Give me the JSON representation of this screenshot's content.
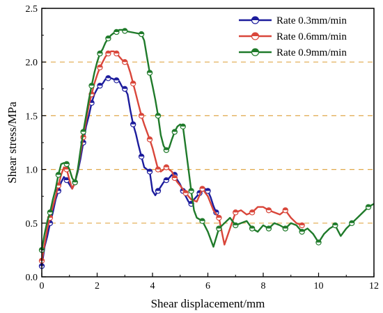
{
  "chart_data": {
    "type": "line",
    "xlabel": "Shear displacement/mm",
    "ylabel": "Shear stress/MPa",
    "xlim": [
      0,
      12
    ],
    "ylim": [
      0,
      2.5
    ],
    "x_ticks": [
      "0",
      "2",
      "4",
      "6",
      "8",
      "10",
      "12"
    ],
    "y_ticks": [
      "0.0",
      "0.5",
      "1.0",
      "1.5",
      "2.0",
      "2.5"
    ],
    "grid": "horizontal dashed lines at 0.5, 1.0, 1.5, 2.0",
    "grid_color": "#e0a84a",
    "legend_position": "top-right",
    "series": [
      {
        "name": "Rate 0.3mm/min",
        "color": "#1c1c9c",
        "x": [
          0,
          0.1,
          0.2,
          0.3,
          0.4,
          0.5,
          0.6,
          0.7,
          0.8,
          0.9,
          1.0,
          1.1,
          1.2,
          1.3,
          1.4,
          1.5,
          1.6,
          1.7,
          1.8,
          1.9,
          2.0,
          2.1,
          2.2,
          2.3,
          2.4,
          2.5,
          2.6,
          2.7,
          2.8,
          2.9,
          3.0,
          3.1,
          3.2,
          3.3,
          3.4,
          3.5,
          3.6,
          3.7,
          3.8,
          3.9,
          4.0,
          4.1,
          4.2,
          4.3,
          4.4,
          4.5,
          4.6,
          4.7,
          4.8,
          4.9,
          5.0,
          5.1,
          5.2,
          5.3,
          5.4,
          5.5,
          5.6,
          5.7,
          5.8,
          5.9,
          6.0,
          6.1,
          6.2,
          6.3,
          6.4
        ],
        "y": [
          0.1,
          0.28,
          0.38,
          0.5,
          0.6,
          0.72,
          0.8,
          0.88,
          0.93,
          0.9,
          0.86,
          0.82,
          0.88,
          0.98,
          1.1,
          1.25,
          1.4,
          1.5,
          1.62,
          1.7,
          1.75,
          1.78,
          1.8,
          1.84,
          1.85,
          1.85,
          1.84,
          1.83,
          1.82,
          1.77,
          1.75,
          1.7,
          1.55,
          1.42,
          1.33,
          1.22,
          1.12,
          1.02,
          1.0,
          0.98,
          0.8,
          0.76,
          0.8,
          0.84,
          0.88,
          0.9,
          0.92,
          0.95,
          0.95,
          0.9,
          0.86,
          0.8,
          0.75,
          0.7,
          0.68,
          0.72,
          0.75,
          0.78,
          0.8,
          0.82,
          0.8,
          0.74,
          0.66,
          0.6,
          0.55
        ]
      },
      {
        "name": "Rate 0.6mm/min",
        "color": "#d9463a",
        "x": [
          0,
          0.1,
          0.2,
          0.3,
          0.4,
          0.5,
          0.6,
          0.7,
          0.8,
          0.9,
          1.0,
          1.1,
          1.2,
          1.3,
          1.4,
          1.5,
          1.6,
          1.7,
          1.8,
          1.9,
          2.0,
          2.1,
          2.2,
          2.3,
          2.4,
          2.5,
          2.6,
          2.7,
          2.8,
          2.9,
          3.0,
          3.1,
          3.2,
          3.3,
          3.4,
          3.5,
          3.6,
          3.7,
          3.8,
          3.9,
          4.0,
          4.1,
          4.2,
          4.3,
          4.4,
          4.5,
          4.6,
          4.7,
          4.8,
          4.9,
          5.0,
          5.2,
          5.4,
          5.6,
          5.8,
          6.0,
          6.2,
          6.4,
          6.6,
          6.8,
          7.0,
          7.2,
          7.4,
          7.6,
          7.8,
          8.0,
          8.2,
          8.4,
          8.6,
          8.8,
          9.0,
          9.2,
          9.4
        ],
        "y": [
          0.15,
          0.3,
          0.45,
          0.55,
          0.65,
          0.75,
          0.85,
          0.95,
          1.02,
          1.0,
          0.9,
          0.82,
          0.88,
          1.0,
          1.15,
          1.3,
          1.45,
          1.6,
          1.7,
          1.8,
          1.88,
          1.95,
          2.0,
          2.05,
          2.08,
          2.1,
          2.1,
          2.08,
          2.05,
          2.02,
          2.0,
          1.98,
          1.9,
          1.8,
          1.7,
          1.6,
          1.5,
          1.42,
          1.35,
          1.28,
          1.2,
          1.1,
          1.0,
          0.98,
          1.0,
          1.02,
          1.0,
          0.98,
          0.92,
          0.88,
          0.85,
          0.78,
          0.72,
          0.7,
          0.82,
          0.75,
          0.62,
          0.55,
          0.3,
          0.45,
          0.6,
          0.62,
          0.58,
          0.6,
          0.65,
          0.65,
          0.62,
          0.6,
          0.58,
          0.62,
          0.55,
          0.5,
          0.48
        ]
      },
      {
        "name": "Rate 0.9mm/min",
        "color": "#1f7a2a",
        "x": [
          0,
          0.1,
          0.2,
          0.3,
          0.4,
          0.5,
          0.6,
          0.7,
          0.8,
          0.9,
          1.0,
          1.1,
          1.2,
          1.3,
          1.4,
          1.5,
          1.6,
          1.7,
          1.8,
          1.9,
          2.0,
          2.1,
          2.2,
          2.3,
          2.4,
          2.5,
          2.6,
          2.7,
          2.8,
          2.9,
          3.0,
          3.2,
          3.4,
          3.6,
          3.7,
          3.8,
          3.9,
          4.0,
          4.1,
          4.2,
          4.3,
          4.4,
          4.5,
          4.6,
          4.7,
          4.8,
          4.9,
          5.0,
          5.1,
          5.2,
          5.3,
          5.4,
          5.5,
          5.6,
          5.8,
          6.0,
          6.2,
          6.4,
          6.6,
          6.8,
          7.0,
          7.2,
          7.4,
          7.6,
          7.8,
          8.0,
          8.2,
          8.4,
          8.6,
          8.8,
          9.0,
          9.2,
          9.4,
          9.6,
          9.8,
          10.0,
          10.2,
          10.4,
          10.6,
          10.8,
          11.0,
          11.2,
          11.4,
          11.6,
          11.8,
          12.0
        ],
        "y": [
          0.25,
          0.4,
          0.52,
          0.6,
          0.72,
          0.82,
          0.95,
          1.05,
          1.06,
          1.05,
          1.0,
          0.92,
          0.88,
          1.0,
          1.18,
          1.35,
          1.5,
          1.65,
          1.78,
          1.9,
          2.0,
          2.08,
          2.12,
          2.18,
          2.22,
          2.25,
          2.27,
          2.28,
          2.3,
          2.3,
          2.29,
          2.28,
          2.27,
          2.26,
          2.2,
          2.05,
          1.9,
          1.78,
          1.65,
          1.5,
          1.32,
          1.22,
          1.18,
          1.2,
          1.28,
          1.35,
          1.4,
          1.42,
          1.4,
          1.2,
          1.0,
          0.8,
          0.62,
          0.55,
          0.52,
          0.42,
          0.28,
          0.45,
          0.5,
          0.55,
          0.48,
          0.5,
          0.52,
          0.45,
          0.42,
          0.48,
          0.45,
          0.5,
          0.48,
          0.45,
          0.5,
          0.48,
          0.42,
          0.45,
          0.4,
          0.32,
          0.4,
          0.45,
          0.48,
          0.38,
          0.45,
          0.5,
          0.55,
          0.6,
          0.65,
          0.68
        ]
      }
    ]
  }
}
